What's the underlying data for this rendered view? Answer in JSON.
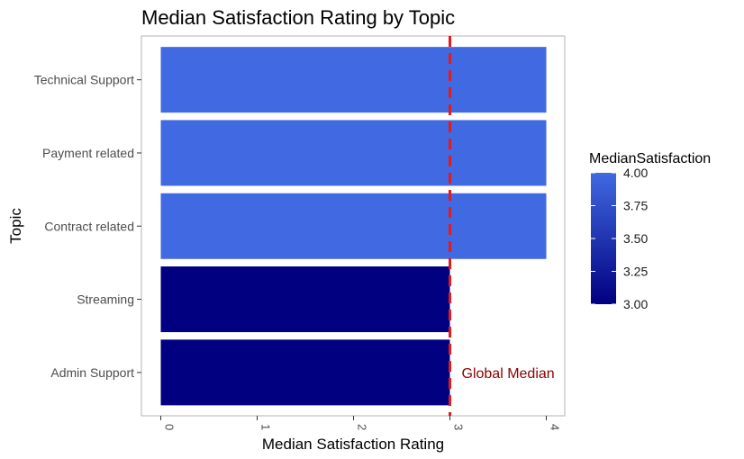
{
  "chart_data": {
    "type": "bar",
    "orientation": "horizontal",
    "title": "Median Satisfaction Rating by Topic",
    "xlabel": "Median Satisfaction Rating",
    "ylabel": "Topic",
    "categories": [
      "Technical Support",
      "Payment related",
      "Contract related",
      "Streaming",
      "Admin Support"
    ],
    "values": [
      4,
      4,
      4,
      3,
      3
    ],
    "xlim": [
      0,
      4
    ],
    "xticks": [
      "0",
      "1",
      "2",
      "3",
      "4"
    ],
    "grid": false,
    "reference_line": {
      "value": 3,
      "color": "#e41a1c",
      "style": "dashed",
      "label": "Global Median"
    },
    "legend": {
      "title": "MedianSatisfaction",
      "placement": "right",
      "type": "colorbar",
      "ticks": [
        "4.00",
        "3.75",
        "3.50",
        "3.25",
        "3.00"
      ],
      "tick_values": [
        4.0,
        3.75,
        3.5,
        3.25,
        3.0
      ],
      "range": [
        3.0,
        4.0
      ],
      "color_low": "#000080",
      "color_high": "#4169e1"
    }
  }
}
